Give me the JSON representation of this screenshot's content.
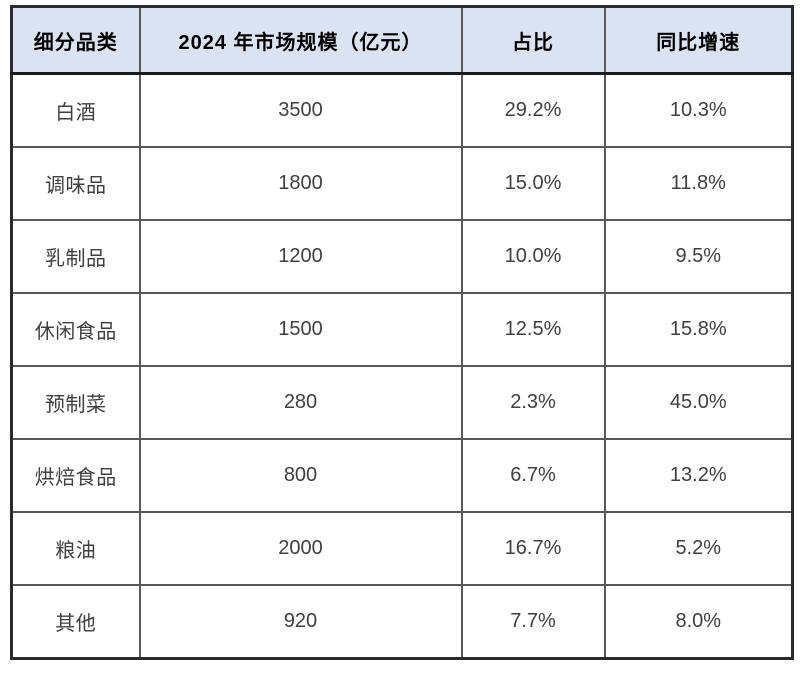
{
  "chart_data": {
    "type": "table",
    "columns": [
      "细分品类",
      "2024 年市场规模（亿元）",
      "占比",
      "同比增速"
    ],
    "rows": [
      [
        "白酒",
        "3500",
        "29.2%",
        "10.3%"
      ],
      [
        "调味品",
        "1800",
        "15.0%",
        "11.8%"
      ],
      [
        "乳制品",
        "1200",
        "10.0%",
        "9.5%"
      ],
      [
        "休闲食品",
        "1500",
        "12.5%",
        "15.8%"
      ],
      [
        "预制菜",
        "280",
        "2.3%",
        "45.0%"
      ],
      [
        "烘焙食品",
        "800",
        "6.7%",
        "13.2%"
      ],
      [
        "粮油",
        "2000",
        "16.7%",
        "5.2%"
      ],
      [
        "其他",
        "920",
        "7.7%",
        "8.0%"
      ]
    ],
    "layout_hints": {
      "header_position": "top",
      "grid": "on",
      "alignment": "center"
    }
  },
  "colors": {
    "header_bg": "#dbe3f3",
    "outer_border": "#2b2b2b",
    "inner_border": "#595959",
    "header_text": "#000000",
    "body_text": "#3f3f3f",
    "cell_bg": "#ffffff"
  }
}
